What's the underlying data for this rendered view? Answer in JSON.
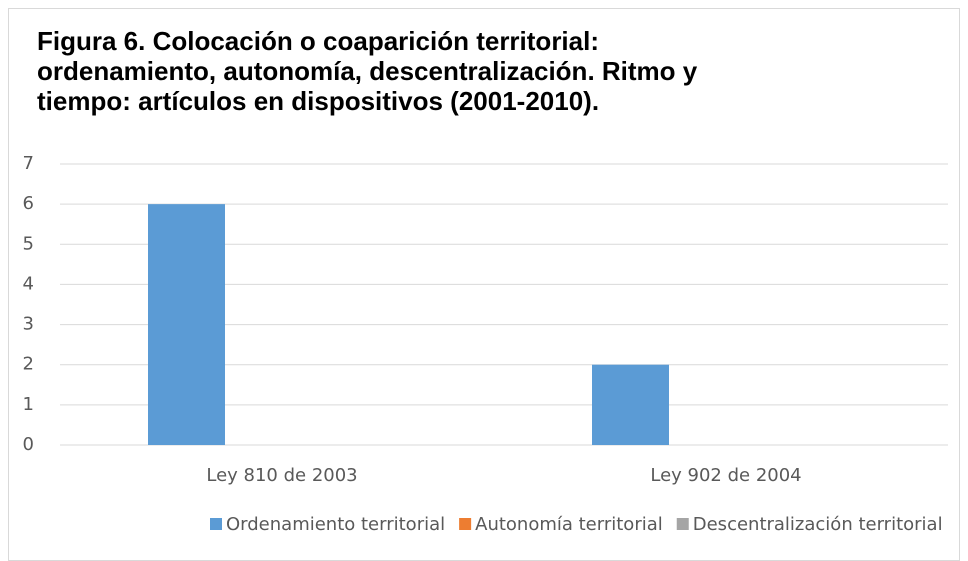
{
  "chart_data": {
    "type": "bar",
    "title": "Figura 6. Colocación o coaparición territorial: ordenamiento, autonomía, descentralización.  Ritmo y tiempo: artículos en dispositivos (2001-2010).",
    "categories": [
      "Ley 810 de 2003",
      "Ley 902 de 2004"
    ],
    "series": [
      {
        "name": "Ordenamiento territorial",
        "color": "#5b9bd5",
        "values": [
          6,
          2
        ]
      },
      {
        "name": "Autonomía territorial",
        "color": "#ed7d31",
        "values": [
          0,
          0
        ]
      },
      {
        "name": "Descentralización territorial",
        "color": "#a5a5a5",
        "values": [
          0,
          0
        ]
      }
    ],
    "ylim": [
      0,
      7
    ],
    "yticks": [
      0,
      1,
      2,
      3,
      4,
      5,
      6,
      7
    ],
    "grid": true,
    "legend": "bottom"
  }
}
